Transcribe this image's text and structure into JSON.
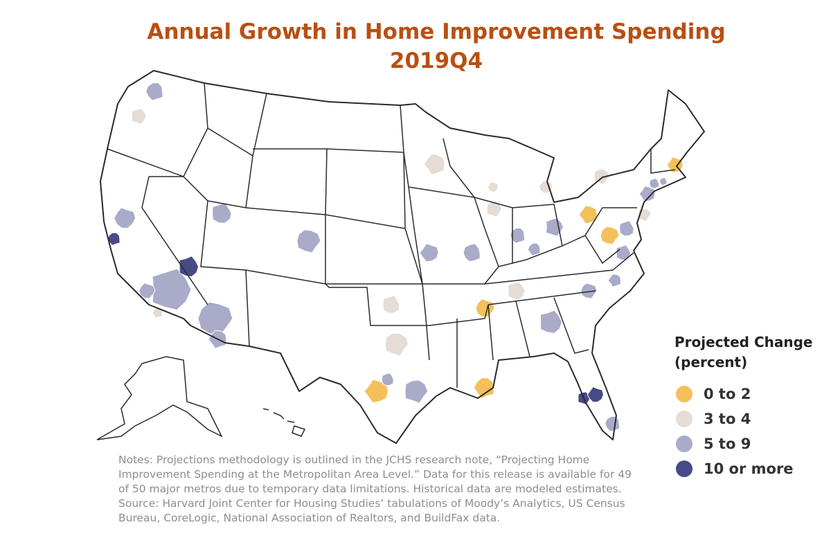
{
  "title": {
    "line1": "Annual Growth in Home Improvement Spending",
    "line2": "2019Q4"
  },
  "legend": {
    "title_line1": "Projected Change",
    "title_line2": "(percent)",
    "items": [
      {
        "label": "0 to 2",
        "color": "#f4c05a"
      },
      {
        "label": "3 to 4",
        "color": "#e4dcd5"
      },
      {
        "label": "5 to 9",
        "color": "#a9abc9"
      },
      {
        "label": "10 or more",
        "color": "#474a86"
      }
    ]
  },
  "notes": "Notes: Projections methodology is outlined in the JCHS research note, “Projecting Home Improvement Spending at the Metropolitan Area Level.” Data for this release is available for 49 of 50 major metros due to temporary data limitations. Historical data are modeled estimates.",
  "source": "Source: Harvard Joint Center for Housing Studies’ tabulations of Moody’s Analytics, US Census Bureau, CoreLogic, National Association of Realtors, and BuildFax data."
}
